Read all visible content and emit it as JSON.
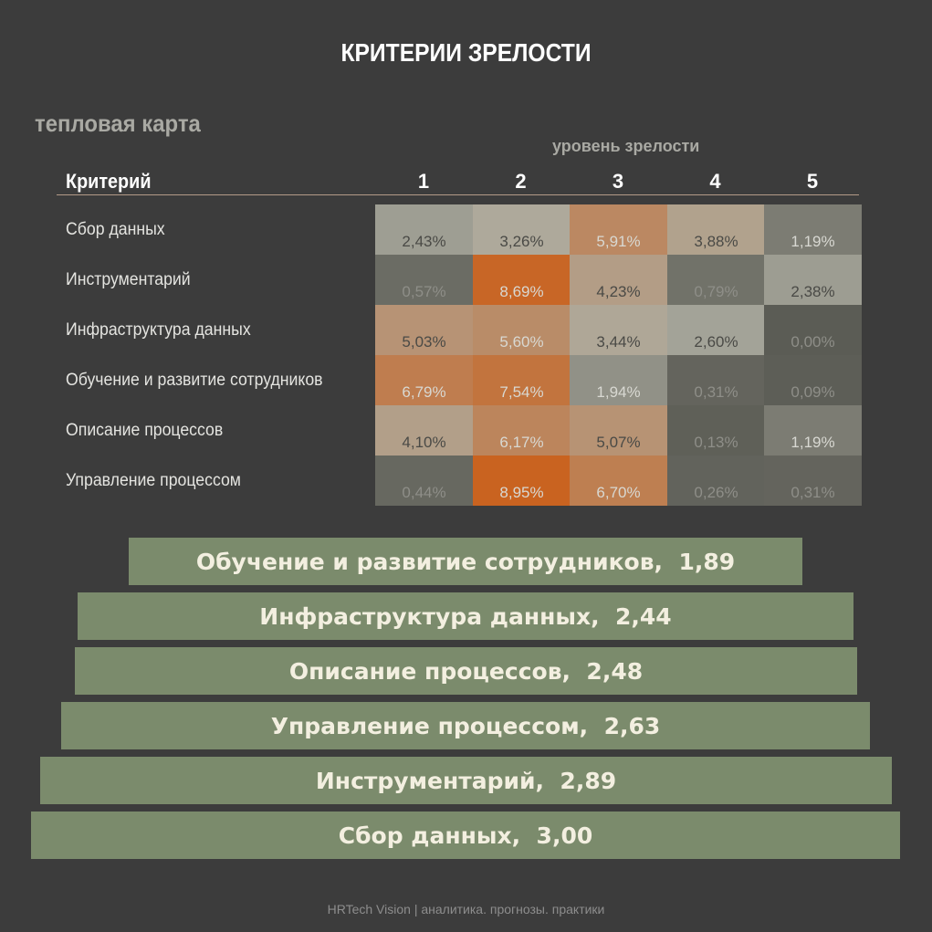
{
  "title": "КРИТЕРИИ ЗРЕЛОСТИ",
  "subtitle": "тепловая карта",
  "level_axis_label": "уровень зрелости",
  "criterion_header": "Критерий",
  "footer": "HRTech Vision | аналитика. прогнозы. практики",
  "colors": {
    "background": "#3c3c3c",
    "heat_low": "#5b5c55",
    "heat_mid": "#adada1",
    "heat_high": "#c9621f",
    "bar": "#7b8b6c"
  },
  "chart_data": [
    {
      "type": "heatmap",
      "title": "тепловая карта",
      "xlabel": "уровень зрелости",
      "ylabel": "Критерий",
      "levels": [
        "1",
        "2",
        "3",
        "4",
        "5"
      ],
      "rows": [
        {
          "label": "Сбор данных",
          "values": [
            "2,43%",
            "3,26%",
            "5,91%",
            "3,88%",
            "1,19%"
          ]
        },
        {
          "label": "Инструментарий",
          "values": [
            "0,57%",
            "8,69%",
            "4,23%",
            "0,79%",
            "2,38%"
          ]
        },
        {
          "label": "Инфраструктура данных",
          "values": [
            "5,03%",
            "5,60%",
            "3,44%",
            "2,60%",
            "0,00%"
          ]
        },
        {
          "label": "Обучение и развитие сотрудников",
          "values": [
            "6,79%",
            "7,54%",
            "1,94%",
            "0,31%",
            "0,09%"
          ]
        },
        {
          "label": "Описание процессов",
          "values": [
            "4,10%",
            "6,17%",
            "5,07%",
            "0,13%",
            "1,19%"
          ]
        },
        {
          "label": "Управление процессом",
          "values": [
            "0,44%",
            "8,95%",
            "6,70%",
            "0,26%",
            "0,31%"
          ]
        }
      ],
      "value_range": [
        0,
        9
      ]
    },
    {
      "type": "bar",
      "orientation": "horizontal",
      "centered": true,
      "xlim": [
        0,
        3.0
      ],
      "categories": [
        "Обучение и развитие сотрудников",
        "Инфраструктура данных",
        "Описание процессов",
        "Управление процессом",
        "Инструментарий",
        "Сбор данных"
      ],
      "values": [
        1.89,
        2.44,
        2.48,
        2.63,
        2.89,
        3.0
      ],
      "labels": [
        "Обучение и развитие сотрудников,  1,89",
        "Инфраструктура данных,  2,44",
        "Описание процессов,  2,48",
        "Управление процессом,  2,63",
        "Инструментарий,  2,89",
        "Сбор данных,  3,00"
      ]
    }
  ]
}
